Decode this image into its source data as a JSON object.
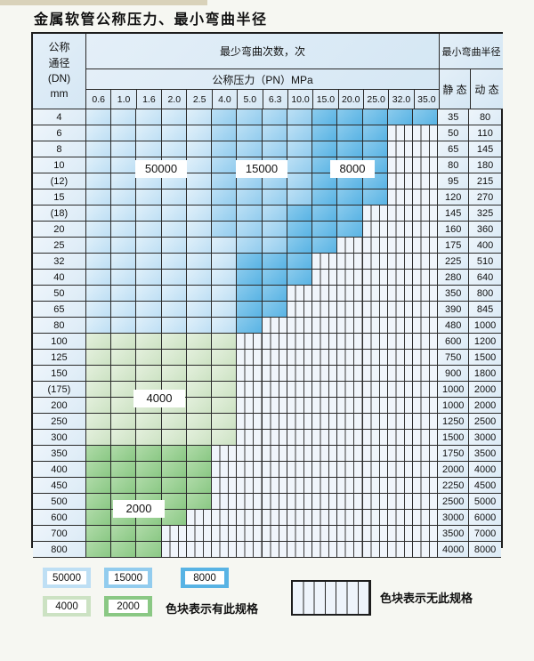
{
  "title": "金属软管公称压力、最小弯曲半径",
  "table": {
    "dn_header": [
      "公称",
      "通径",
      "(DN)",
      "mm"
    ],
    "bend_cycles_header": "最少弯曲次数，次",
    "pressure_header": "公称压力（PN）MPa",
    "radius_header": "最小弯曲半径",
    "static_label": "静 态",
    "dynamic_label": "动 态",
    "pressure_columns": [
      "0.6",
      "1.0",
      "1.6",
      "2.0",
      "2.5",
      "4.0",
      "5.0",
      "6.3",
      "10.0",
      "15.0",
      "20.0",
      "25.0",
      "32.0",
      "35.0"
    ],
    "rows": [
      {
        "dn": "4",
        "static": "35",
        "dynamic": "80",
        "spans": [
          [
            5,
            "b1"
          ],
          [
            4,
            "b2"
          ],
          [
            5,
            "b3"
          ]
        ]
      },
      {
        "dn": "6",
        "static": "50",
        "dynamic": "110",
        "spans": [
          [
            5,
            "b1"
          ],
          [
            4,
            "b2"
          ],
          [
            3,
            "b3"
          ]
        ]
      },
      {
        "dn": "8",
        "static": "65",
        "dynamic": "145",
        "spans": [
          [
            5,
            "b1"
          ],
          [
            4,
            "b2"
          ],
          [
            3,
            "b3"
          ]
        ]
      },
      {
        "dn": "10",
        "static": "80",
        "dynamic": "180",
        "spans": [
          [
            5,
            "b1"
          ],
          [
            4,
            "b2"
          ],
          [
            3,
            "b3"
          ]
        ]
      },
      {
        "dn": "(12)",
        "static": "95",
        "dynamic": "215",
        "spans": [
          [
            5,
            "b1"
          ],
          [
            4,
            "b2"
          ],
          [
            3,
            "b3"
          ]
        ]
      },
      {
        "dn": "15",
        "static": "120",
        "dynamic": "270",
        "spans": [
          [
            5,
            "b1"
          ],
          [
            4,
            "b2"
          ],
          [
            3,
            "b3"
          ]
        ]
      },
      {
        "dn": "(18)",
        "static": "145",
        "dynamic": "325",
        "spans": [
          [
            5,
            "b1"
          ],
          [
            3,
            "b2"
          ],
          [
            3,
            "b3"
          ]
        ]
      },
      {
        "dn": "20",
        "static": "160",
        "dynamic": "360",
        "spans": [
          [
            5,
            "b1"
          ],
          [
            3,
            "b2"
          ],
          [
            3,
            "b3"
          ]
        ]
      },
      {
        "dn": "25",
        "static": "175",
        "dynamic": "400",
        "spans": [
          [
            6,
            "b1"
          ],
          [
            2,
            "b2"
          ],
          [
            2,
            "b3"
          ]
        ]
      },
      {
        "dn": "32",
        "static": "225",
        "dynamic": "510",
        "spans": [
          [
            6,
            "b1"
          ],
          [
            3,
            "b3"
          ]
        ]
      },
      {
        "dn": "40",
        "static": "280",
        "dynamic": "640",
        "spans": [
          [
            6,
            "b1"
          ],
          [
            3,
            "b3"
          ]
        ]
      },
      {
        "dn": "50",
        "static": "350",
        "dynamic": "800",
        "spans": [
          [
            6,
            "b1"
          ],
          [
            2,
            "b3"
          ]
        ]
      },
      {
        "dn": "65",
        "static": "390",
        "dynamic": "845",
        "spans": [
          [
            6,
            "b1"
          ],
          [
            2,
            "b3"
          ]
        ]
      },
      {
        "dn": "80",
        "static": "480",
        "dynamic": "1000",
        "spans": [
          [
            6,
            "b1"
          ],
          [
            1,
            "b3"
          ]
        ]
      },
      {
        "dn": "100",
        "static": "600",
        "dynamic": "1200",
        "spans": [
          [
            6,
            "g1"
          ]
        ]
      },
      {
        "dn": "125",
        "static": "750",
        "dynamic": "1500",
        "spans": [
          [
            6,
            "g1"
          ]
        ]
      },
      {
        "dn": "150",
        "static": "900",
        "dynamic": "1800",
        "spans": [
          [
            6,
            "g1"
          ]
        ]
      },
      {
        "dn": "(175)",
        "static": "1000",
        "dynamic": "2000",
        "spans": [
          [
            6,
            "g1"
          ]
        ]
      },
      {
        "dn": "200",
        "static": "1000",
        "dynamic": "2000",
        "spans": [
          [
            6,
            "g1"
          ]
        ]
      },
      {
        "dn": "250",
        "static": "1250",
        "dynamic": "2500",
        "spans": [
          [
            6,
            "g1"
          ]
        ]
      },
      {
        "dn": "300",
        "static": "1500",
        "dynamic": "3000",
        "spans": [
          [
            6,
            "g1"
          ]
        ]
      },
      {
        "dn": "350",
        "static": "1750",
        "dynamic": "3500",
        "spans": [
          [
            5,
            "g2"
          ]
        ]
      },
      {
        "dn": "400",
        "static": "2000",
        "dynamic": "4000",
        "spans": [
          [
            5,
            "g2"
          ]
        ]
      },
      {
        "dn": "450",
        "static": "2250",
        "dynamic": "4500",
        "spans": [
          [
            5,
            "g2"
          ]
        ]
      },
      {
        "dn": "500",
        "static": "2500",
        "dynamic": "5000",
        "spans": [
          [
            5,
            "g2"
          ]
        ]
      },
      {
        "dn": "600",
        "static": "3000",
        "dynamic": "6000",
        "spans": [
          [
            4,
            "g2"
          ]
        ]
      },
      {
        "dn": "700",
        "static": "3500",
        "dynamic": "7000",
        "spans": [
          [
            3,
            "g2"
          ]
        ]
      },
      {
        "dn": "800",
        "static": "4000",
        "dynamic": "8000",
        "spans": [
          [
            3,
            "g2"
          ]
        ]
      }
    ]
  },
  "legend": {
    "items": [
      {
        "value": "50000",
        "color": "#bedff4"
      },
      {
        "value": "15000",
        "color": "#92ccee"
      },
      {
        "value": "8000",
        "color": "#58b3e4"
      },
      {
        "value": "4000",
        "color": "#cce2c3"
      },
      {
        "value": "2000",
        "color": "#8ac884"
      }
    ],
    "has_spec_label": "色块表示有此规格",
    "no_spec_label": "色块表示无此规格"
  },
  "colors": {
    "blue_50000": "#bedff4",
    "blue_15000": "#92ccee",
    "blue_8000": "#58b3e4",
    "green_4000": "#cce2c3",
    "green_2000": "#8ac884",
    "hatch_bg": "#f0f5fb",
    "grid_line": "#2a2a2a"
  }
}
